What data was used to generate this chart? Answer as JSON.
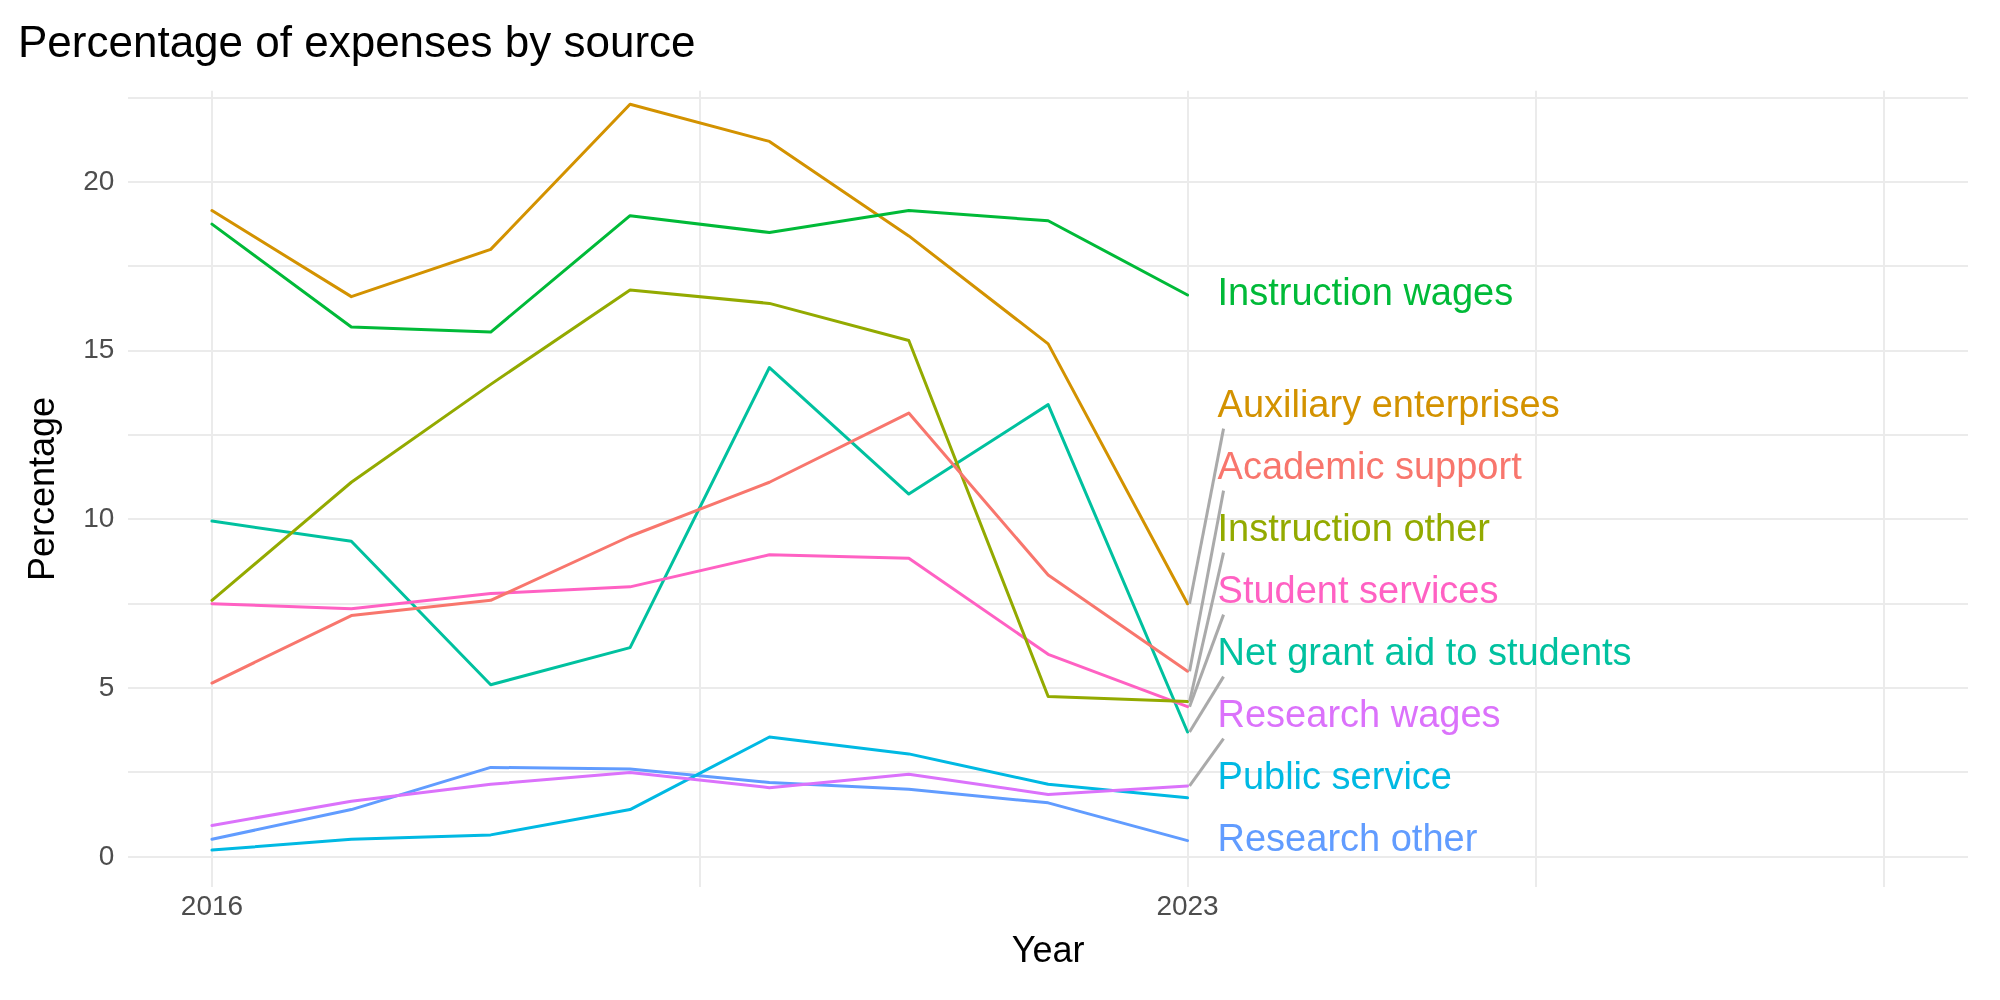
{
  "chart_data": {
    "type": "line",
    "title": "Percentage of expenses by source",
    "xlabel": "Year",
    "ylabel": "Percentage",
    "x": [
      2016,
      2017,
      2018,
      2019,
      2020,
      2021,
      2022,
      2023
    ],
    "xlim": [
      2015.4,
      2028.6
    ],
    "xticks": [
      2016,
      {
        "value": 2019.5,
        "label": null
      },
      2023,
      {
        "value": 2025.5,
        "label": null
      },
      {
        "value": 2028,
        "label": null
      }
    ],
    "ylim": [
      -0.9,
      22.7
    ],
    "yticks": [
      0,
      {
        "value": 2.5,
        "label": null
      },
      5,
      {
        "value": 7.5,
        "label": null
      },
      10,
      {
        "value": 12.5,
        "label": null
      },
      15,
      {
        "value": 17.5,
        "label": null
      },
      20,
      {
        "value": 22.5,
        "label": null
      }
    ],
    "grid": true,
    "legend": false,
    "marker": "none",
    "line_style": "solid",
    "series": [
      {
        "name": "Instruction wages",
        "color": "#00ba38",
        "values": [
          18.75,
          15.7,
          15.55,
          19.0,
          18.5,
          19.15,
          18.85,
          16.65
        ]
      },
      {
        "name": "Auxiliary enterprises",
        "color": "#d39200",
        "values": [
          19.15,
          16.6,
          18.0,
          22.3,
          21.2,
          18.4,
          15.2,
          7.5
        ]
      },
      {
        "name": "Academic support",
        "color": "#f8766d",
        "values": [
          5.15,
          7.15,
          7.6,
          9.5,
          11.1,
          13.15,
          8.35,
          5.5
        ]
      },
      {
        "name": "Instruction other",
        "color": "#93aa00",
        "values": [
          7.6,
          11.1,
          14.0,
          16.8,
          16.4,
          15.3,
          4.75,
          4.6
        ]
      },
      {
        "name": "Student services",
        "color": "#ff61c3",
        "values": [
          7.5,
          7.35,
          7.8,
          8.0,
          8.95,
          8.85,
          6.0,
          4.45
        ]
      },
      {
        "name": "Net grant aid to students",
        "color": "#00c19f",
        "values": [
          9.95,
          9.35,
          5.1,
          6.2,
          14.5,
          10.75,
          13.4,
          3.7
        ]
      },
      {
        "name": "Research wages",
        "color": "#db72fb",
        "values": [
          0.93,
          1.65,
          2.15,
          2.5,
          2.05,
          2.45,
          1.85,
          2.1
        ]
      },
      {
        "name": "Public service",
        "color": "#00b9e3",
        "values": [
          0.2,
          0.52,
          0.65,
          1.4,
          3.55,
          3.05,
          2.15,
          1.75
        ]
      },
      {
        "name": "Research other",
        "color": "#619cff",
        "values": [
          0.52,
          1.4,
          2.65,
          2.6,
          2.2,
          2.0,
          1.6,
          0.48
        ]
      }
    ]
  }
}
